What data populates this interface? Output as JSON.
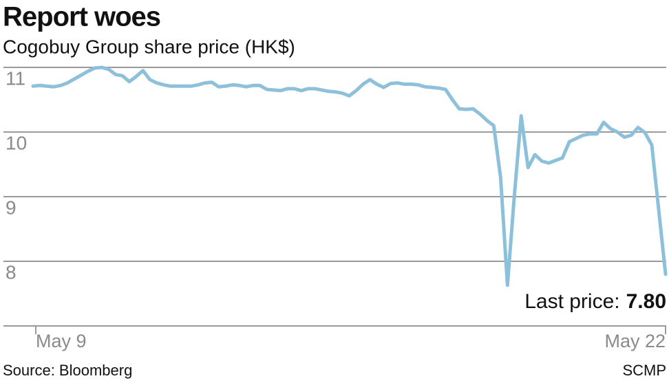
{
  "chart_data": {
    "type": "line",
    "title": "Report woes",
    "subtitle": "Cogobuy Group share price (HK$)",
    "annotation": {
      "label": "Last price:",
      "value": "7.80"
    },
    "source": "Source: Bloomberg",
    "credit": "SCMP",
    "categories": [
      "May 9",
      null,
      null,
      null,
      null,
      null,
      null,
      null,
      null,
      null,
      null,
      null,
      null,
      null,
      null,
      null,
      null,
      null,
      null,
      null,
      null,
      null,
      null,
      null,
      null,
      null,
      null,
      null,
      null,
      null,
      null,
      null,
      null,
      null,
      null,
      null,
      null,
      null,
      null,
      null,
      null,
      null,
      null,
      null,
      null,
      null,
      null,
      null,
      null,
      null,
      null,
      null,
      null,
      null,
      null,
      null,
      null,
      null,
      null,
      null,
      null,
      null,
      null,
      null,
      null,
      null,
      null,
      null,
      null,
      null,
      null,
      null,
      null,
      null,
      null,
      null,
      null,
      null,
      null,
      null,
      null,
      null,
      null,
      null,
      null,
      null,
      null,
      null,
      null,
      null,
      null,
      null,
      "May 22"
    ],
    "series": [
      {
        "name": "Cogobuy Group",
        "color": "#8cc0db",
        "values": [
          10.71,
          10.72,
          10.71,
          10.7,
          10.72,
          10.76,
          10.82,
          10.88,
          10.94,
          10.99,
          11.0,
          10.97,
          10.89,
          10.87,
          10.78,
          10.86,
          10.95,
          10.81,
          10.76,
          10.73,
          10.71,
          10.71,
          10.71,
          10.71,
          10.73,
          10.76,
          10.77,
          10.7,
          10.71,
          10.73,
          10.72,
          10.7,
          10.72,
          10.72,
          10.66,
          10.65,
          10.64,
          10.67,
          10.67,
          10.64,
          10.67,
          10.67,
          10.65,
          10.63,
          10.62,
          10.6,
          10.56,
          10.64,
          10.74,
          10.81,
          10.74,
          10.69,
          10.75,
          10.76,
          10.74,
          10.74,
          10.73,
          10.7,
          10.69,
          10.68,
          10.66,
          10.5,
          10.36,
          10.35,
          10.36,
          10.28,
          10.18,
          10.1,
          9.3,
          7.63,
          9.0,
          10.25,
          9.45,
          9.65,
          9.55,
          9.52,
          9.56,
          9.6,
          9.85,
          9.9,
          9.95,
          9.97,
          9.97,
          10.15,
          10.05,
          10.0,
          9.92,
          9.95,
          10.07,
          9.99,
          9.8,
          8.8,
          7.8
        ]
      }
    ],
    "ylim": [
      7,
      11
    ],
    "yticks": [
      8,
      9,
      10,
      11
    ],
    "grid": true
  }
}
